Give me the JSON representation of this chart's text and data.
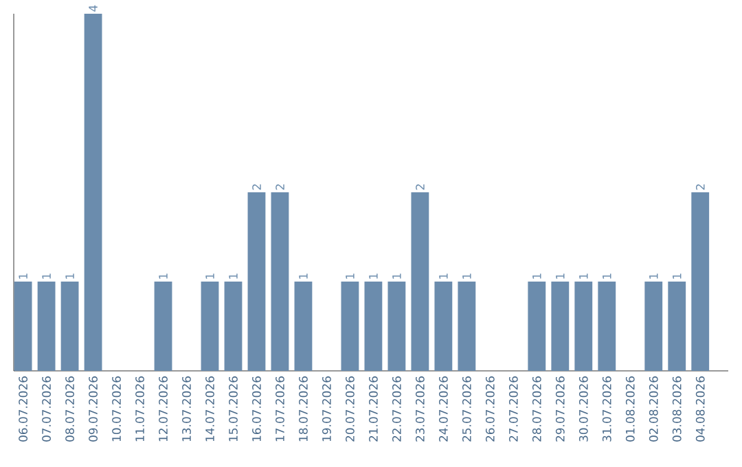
{
  "chart_data": {
    "type": "bar",
    "categories": [
      "06.07.2026",
      "07.07.2026",
      "08.07.2026",
      "09.07.2026",
      "10.07.2026",
      "11.07.2026",
      "12.07.2026",
      "13.07.2026",
      "14.07.2026",
      "15.07.2026",
      "16.07.2026",
      "17.07.2026",
      "18.07.2026",
      "19.07.2026",
      "20.07.2026",
      "21.07.2026",
      "22.07.2026",
      "23.07.2026",
      "24.07.2026",
      "25.07.2026",
      "26.07.2026",
      "27.07.2026",
      "28.07.2026",
      "29.07.2026",
      "30.07.2026",
      "31.07.2026",
      "01.08.2026",
      "02.08.2026",
      "03.08.2026",
      "04.08.2026"
    ],
    "values": [
      1,
      1,
      1,
      4,
      0,
      0,
      1,
      0,
      1,
      1,
      2,
      2,
      1,
      0,
      1,
      1,
      1,
      2,
      1,
      1,
      0,
      0,
      1,
      1,
      1,
      1,
      0,
      1,
      1,
      2
    ],
    "value_labels": [
      "1",
      "1",
      "1",
      "4",
      null,
      null,
      "1",
      null,
      "1",
      "1",
      "2",
      "2",
      "1",
      null,
      "1",
      "1",
      "1",
      "2",
      "1",
      "1",
      null,
      null,
      "1",
      "1",
      "1",
      "1",
      null,
      "1",
      "1",
      "2"
    ],
    "color": "#6b8cad"
  }
}
